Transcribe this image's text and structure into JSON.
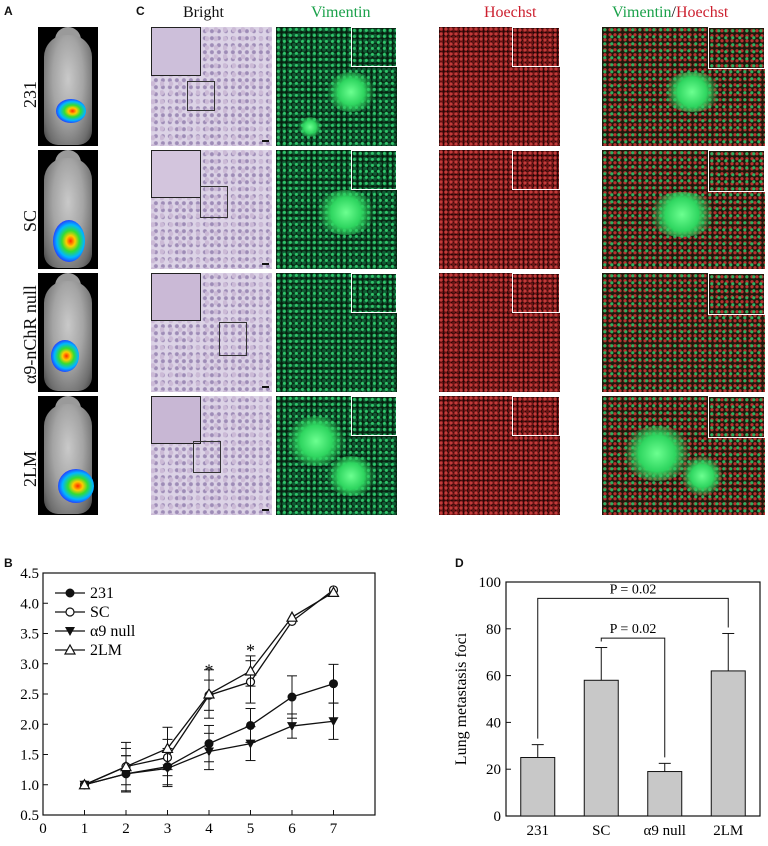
{
  "panel_letters": {
    "a": "A",
    "b": "B",
    "c": "C",
    "d": "D"
  },
  "panel_a": {
    "labels": [
      "231",
      "SC",
      "α9-nChR null",
      "2LM"
    ]
  },
  "panel_c": {
    "columns": {
      "bright": "Bright",
      "vimentin": "Vimentin",
      "hoechst": "Hoechst",
      "merge_green": "Vimentin",
      "merge_slash": "/",
      "merge_red": "Hoechst"
    },
    "colors": {
      "green": "#1aa14a",
      "red": "#cc1f2e"
    }
  },
  "chart_data": [
    {
      "type": "line",
      "panel": "B",
      "x": [
        1,
        2,
        3,
        4,
        5,
        6,
        7
      ],
      "xlim": [
        0,
        8
      ],
      "ylim": [
        0.5,
        4.5
      ],
      "xticks": [
        0,
        1,
        2,
        3,
        4,
        5,
        6,
        7
      ],
      "yticks": [
        0.5,
        1.0,
        1.5,
        2.0,
        2.5,
        3.0,
        3.5,
        4.0,
        4.5
      ],
      "series": [
        {
          "name": "231",
          "marker": "filled-circle",
          "values": [
            1.0,
            1.18,
            1.3,
            1.68,
            1.98,
            2.45,
            2.67
          ],
          "err": [
            0,
            0.3,
            0.3,
            0.3,
            0.28,
            0.35,
            0.32
          ]
        },
        {
          "name": "SC",
          "marker": "open-circle",
          "values": [
            1.0,
            1.3,
            1.45,
            2.48,
            2.7,
            3.7,
            4.22
          ],
          "err": [
            0,
            0.3,
            0.3,
            0.25,
            0.35,
            0,
            0
          ]
        },
        {
          "name": "α9 null",
          "marker": "filled-triangle-down",
          "values": [
            1.0,
            1.18,
            1.27,
            1.55,
            1.68,
            1.97,
            2.05
          ],
          "err": [
            0,
            0.3,
            0.3,
            0.3,
            0.28,
            0.2,
            0.3
          ]
        },
        {
          "name": "2LM",
          "marker": "open-triangle-up",
          "values": [
            1.0,
            1.3,
            1.6,
            2.5,
            2.88,
            3.77,
            4.18
          ],
          "err": [
            0,
            0.4,
            0.35,
            0.4,
            0.25,
            0,
            0
          ]
        }
      ],
      "annotations": [
        {
          "x": 4,
          "y": 2.92,
          "text": "*"
        },
        {
          "x": 5,
          "y": 3.25,
          "text": "*"
        }
      ],
      "legend": "top-left"
    },
    {
      "type": "bar",
      "panel": "D",
      "categories": [
        "231",
        "SC",
        "α9 null",
        "2LM"
      ],
      "values": [
        25,
        58,
        19,
        62
      ],
      "errors": [
        5.5,
        14,
        3.5,
        16
      ],
      "ylabel": "Lung metastasis foci",
      "ylim": [
        0,
        100
      ],
      "yticks": [
        0,
        20,
        40,
        60,
        80,
        100
      ],
      "bar_color": "#c8c8c8",
      "brackets": [
        {
          "from": 0,
          "to": 3,
          "label": "P = 0.02"
        },
        {
          "from": 1,
          "to": 2,
          "label": "P = 0.02"
        }
      ]
    }
  ]
}
